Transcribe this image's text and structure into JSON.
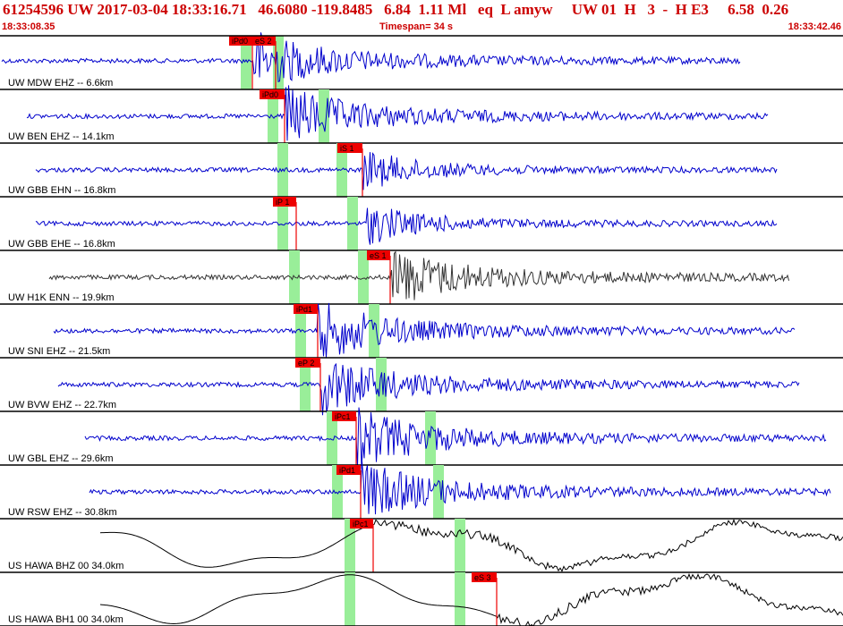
{
  "header": {
    "line1": "61254596 UW 2017-03-04 18:33:16.71   46.6080 -119.8485   6.84  1.11 Ml   eq  L amyw     UW 01  H   3  -  H E3     6.58  0.26",
    "start_time": "18:33:08.35",
    "timespan": "Timespan=  34 s",
    "end_time": "18:33:42.46"
  },
  "colors": {
    "trace_blue": "#0000cc",
    "trace_gray": "#333333",
    "trace_black": "#000000",
    "pick_red": "#ee0000",
    "window_green": "#99ee99",
    "header_red": "#cc0000"
  },
  "channels": [
    {
      "label": "UW MDW EHZ -- 6.6km",
      "color": "blue",
      "style": "short",
      "picks": [
        {
          "text": "iPd0"
        },
        {
          "text": "eS 2"
        }
      ]
    },
    {
      "label": "UW BEN EHZ -- 14.1km",
      "color": "blue",
      "style": "short",
      "picks": [
        {
          "text": "iPd0"
        }
      ]
    },
    {
      "label": "UW GBB EHN -- 16.8km",
      "color": "blue",
      "style": "short",
      "picks": [
        {
          "text": "iS 1"
        }
      ]
    },
    {
      "label": "UW GBB EHE -- 16.8km",
      "color": "blue",
      "style": "short",
      "picks": [
        {
          "text": "iP 1"
        }
      ]
    },
    {
      "label": "UW H1K ENN -- 19.9km",
      "color": "gray",
      "style": "short",
      "picks": [
        {
          "text": "eS 1"
        }
      ]
    },
    {
      "label": "UW SNI EHZ -- 21.5km",
      "color": "blue",
      "style": "short",
      "picks": [
        {
          "text": "iPd1"
        }
      ]
    },
    {
      "label": "UW BVW EHZ -- 22.7km",
      "color": "blue",
      "style": "short",
      "picks": [
        {
          "text": "eP 2"
        }
      ]
    },
    {
      "label": "UW GBL EHZ -- 29.6km",
      "color": "blue",
      "style": "short",
      "picks": [
        {
          "text": "iPc1"
        }
      ]
    },
    {
      "label": "UW RSW EHZ -- 30.8km",
      "color": "blue",
      "style": "short",
      "picks": [
        {
          "text": "iPd1"
        }
      ]
    },
    {
      "label": "US HAWA BHZ 00 34.0km",
      "color": "black",
      "style": "long",
      "picks": [
        {
          "text": "iPc1"
        }
      ]
    },
    {
      "label": "US HAWA BH1 00 34.0km",
      "color": "black",
      "style": "long",
      "picks": [
        {
          "text": "eS 3"
        }
      ]
    }
  ]
}
